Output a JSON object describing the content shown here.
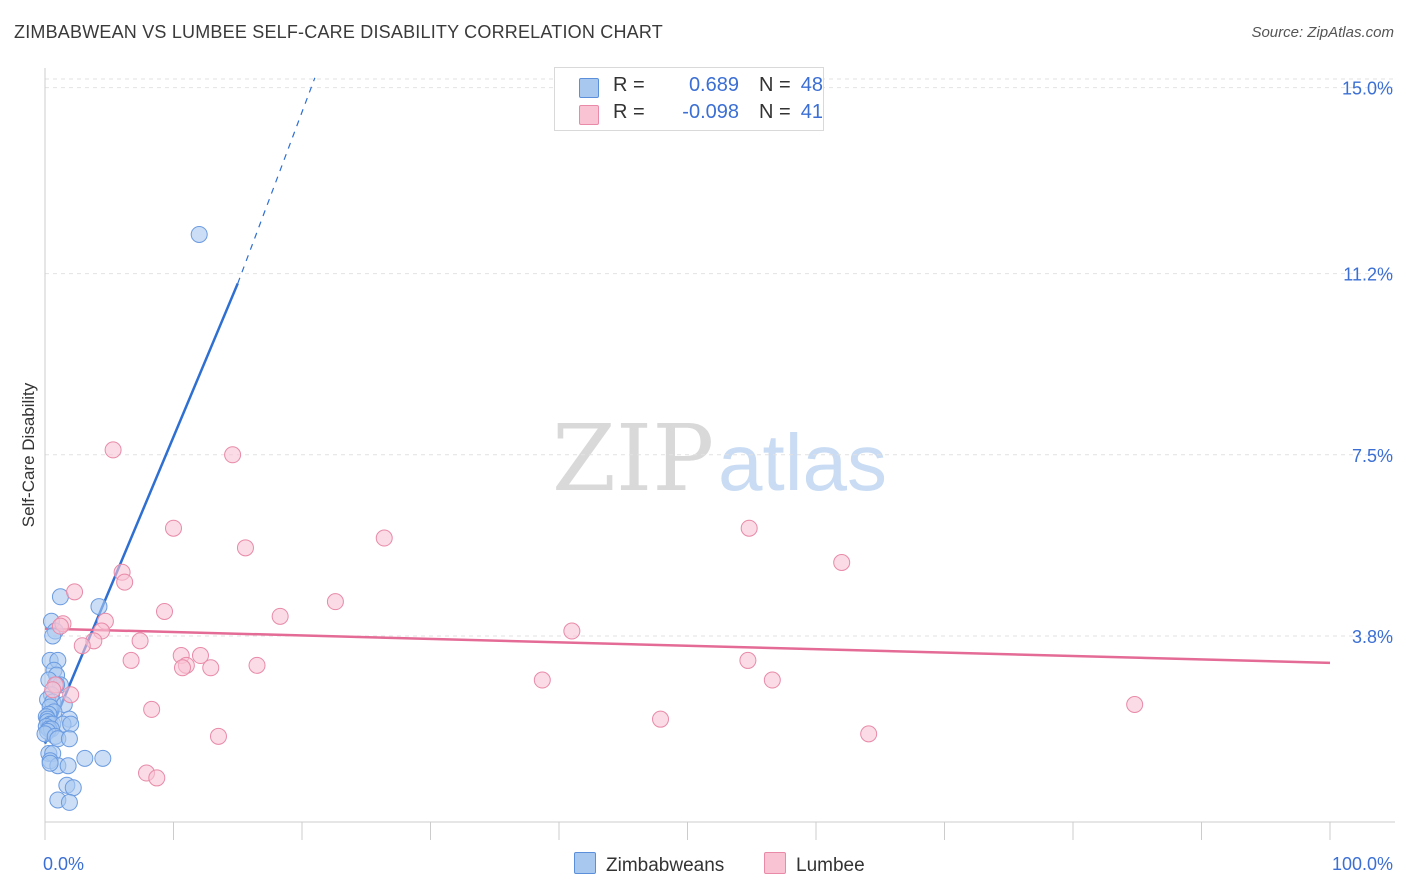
{
  "title": "ZIMBABWEAN VS LUMBEE SELF-CARE DISABILITY CORRELATION CHART",
  "source": "Source: ZipAtlas.com",
  "watermark": {
    "zip": "ZIP",
    "atlas": "atlas"
  },
  "legend": {
    "rows": [
      {
        "r_label": "R =",
        "r_value": "0.689",
        "n_label": "N =",
        "n_value": "48",
        "color": "#a9c8f0",
        "border": "#5b8fd9"
      },
      {
        "r_label": "R =",
        "r_value": "-0.098",
        "n_label": "N =",
        "n_value": "41",
        "color": "#f9c3d3",
        "border": "#e88aa8"
      }
    ]
  },
  "bottom_legend": {
    "zimbabweans": "Zimbabweans",
    "lumbee": "Lumbee"
  },
  "chart_data": {
    "type": "scatter",
    "title": "ZIMBABWEAN VS LUMBEE SELF-CARE DISABILITY CORRELATION CHART",
    "xlabel": "",
    "ylabel": "Self-Care Disability",
    "xlim": [
      0,
      100
    ],
    "ylim": [
      0,
      15.4
    ],
    "y_ticks": [
      {
        "value": 15.0,
        "label": "15.0%"
      },
      {
        "value": 11.2,
        "label": "11.2%"
      },
      {
        "value": 7.5,
        "label": "7.5%"
      },
      {
        "value": 3.8,
        "label": "3.8%"
      }
    ],
    "x_ticks": [
      {
        "value": 0,
        "label": "0.0%"
      },
      {
        "value": 100,
        "label": "100.0%"
      }
    ],
    "grid": true,
    "series": [
      {
        "name": "Zimbabweans",
        "color": "#6b9be0",
        "fill": "#a9c8f0",
        "points": [
          [
            12.0,
            12.0
          ],
          [
            1.2,
            4.6
          ],
          [
            4.2,
            4.4
          ],
          [
            0.5,
            4.1
          ],
          [
            0.8,
            3.9
          ],
          [
            0.6,
            3.8
          ],
          [
            0.4,
            3.3
          ],
          [
            1.0,
            3.3
          ],
          [
            0.7,
            3.1
          ],
          [
            0.9,
            3.0
          ],
          [
            0.3,
            2.9
          ],
          [
            1.2,
            2.8
          ],
          [
            0.9,
            2.8
          ],
          [
            0.5,
            2.6
          ],
          [
            0.2,
            2.5
          ],
          [
            0.6,
            2.45
          ],
          [
            1.5,
            2.4
          ],
          [
            0.4,
            2.35
          ],
          [
            0.7,
            2.25
          ],
          [
            0.3,
            2.2
          ],
          [
            0.1,
            2.15
          ],
          [
            0.2,
            2.1
          ],
          [
            1.9,
            2.1
          ],
          [
            0.2,
            2.05
          ],
          [
            0.4,
            2.0
          ],
          [
            0.6,
            2.0
          ],
          [
            1.4,
            2.0
          ],
          [
            2.0,
            2.0
          ],
          [
            0.1,
            1.95
          ],
          [
            0.3,
            1.9
          ],
          [
            0.5,
            1.9
          ],
          [
            0.2,
            1.85
          ],
          [
            0.0,
            1.8
          ],
          [
            0.8,
            1.75
          ],
          [
            1.0,
            1.7
          ],
          [
            1.9,
            1.7
          ],
          [
            0.3,
            1.4
          ],
          [
            0.6,
            1.4
          ],
          [
            3.1,
            1.3
          ],
          [
            4.5,
            1.3
          ],
          [
            0.4,
            1.25
          ],
          [
            1.0,
            1.15
          ],
          [
            1.8,
            1.15
          ],
          [
            1.7,
            0.75
          ],
          [
            2.2,
            0.7
          ],
          [
            1.0,
            0.45
          ],
          [
            1.9,
            0.4
          ],
          [
            0.4,
            1.2
          ]
        ]
      },
      {
        "name": "Lumbee",
        "color": "#e88aa8",
        "fill": "#f9c3d3",
        "points": [
          [
            5.3,
            7.6
          ],
          [
            14.6,
            7.5
          ],
          [
            10.0,
            6.0
          ],
          [
            15.6,
            5.6
          ],
          [
            26.4,
            5.8
          ],
          [
            54.8,
            6.0
          ],
          [
            62.0,
            5.3
          ],
          [
            6.0,
            5.1
          ],
          [
            6.2,
            4.9
          ],
          [
            2.3,
            4.7
          ],
          [
            9.3,
            4.3
          ],
          [
            18.3,
            4.2
          ],
          [
            22.6,
            4.5
          ],
          [
            4.7,
            4.1
          ],
          [
            1.4,
            4.05
          ],
          [
            1.2,
            4.0
          ],
          [
            4.4,
            3.9
          ],
          [
            41.0,
            3.9
          ],
          [
            7.4,
            3.7
          ],
          [
            3.8,
            3.7
          ],
          [
            2.9,
            3.6
          ],
          [
            10.6,
            3.4
          ],
          [
            12.1,
            3.4
          ],
          [
            6.7,
            3.3
          ],
          [
            11.0,
            3.2
          ],
          [
            16.5,
            3.2
          ],
          [
            54.7,
            3.3
          ],
          [
            10.7,
            3.15
          ],
          [
            12.9,
            3.15
          ],
          [
            0.8,
            2.8
          ],
          [
            38.7,
            2.9
          ],
          [
            56.6,
            2.9
          ],
          [
            84.8,
            2.4
          ],
          [
            8.3,
            2.3
          ],
          [
            47.9,
            2.1
          ],
          [
            64.1,
            1.8
          ],
          [
            13.5,
            1.75
          ],
          [
            7.9,
            1.0
          ],
          [
            8.7,
            0.9
          ],
          [
            0.6,
            2.7
          ],
          [
            2.0,
            2.6
          ]
        ]
      }
    ],
    "trendlines": [
      {
        "series": "Zimbabweans",
        "solid_from": [
          0,
          1.6
        ],
        "solid_to": [
          15.0,
          11.0
        ],
        "dashed_to": [
          21.0,
          15.2
        ]
      },
      {
        "series": "Lumbee",
        "from": [
          0,
          3.95
        ],
        "to": [
          100,
          3.25
        ]
      }
    ]
  }
}
